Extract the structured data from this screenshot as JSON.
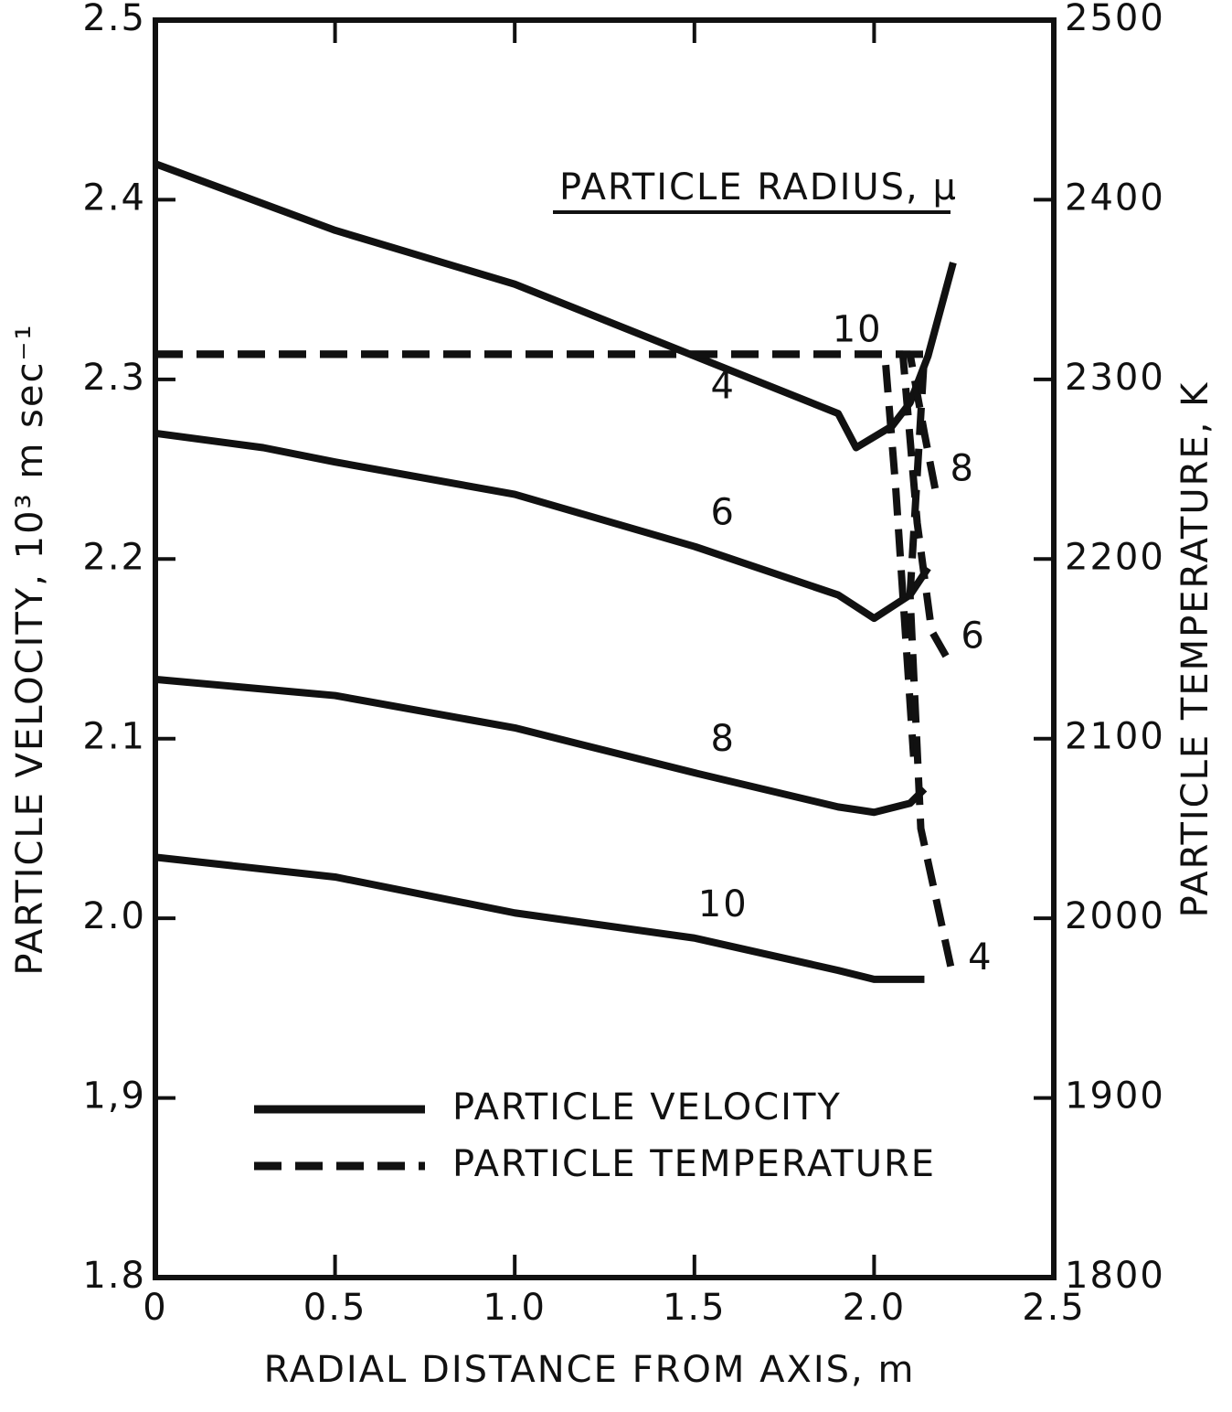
{
  "chart_data": {
    "type": "line",
    "xlabel": "RADIAL DISTANCE FROM AXIS, m",
    "ylabel": "PARTICLE VELOCITY, 10³ m sec⁻¹",
    "y2label": "PARTICLE TEMPERATURE, K",
    "legend_title": "PARTICLE RADIUS, μ",
    "legend": [
      {
        "label": "PARTICLE VELOCITY",
        "style": "solid"
      },
      {
        "label": "PARTICLE TEMPERATURE",
        "style": "dashed"
      }
    ],
    "xlim": [
      0,
      2.5
    ],
    "xticks": [
      0,
      0.5,
      {
        "value": 1,
        "label": "1.0"
      },
      1.5,
      {
        "value": 2,
        "label": "2.0"
      },
      2.5
    ],
    "ylim": [
      1.8,
      2.5
    ],
    "yticks": [
      1.8,
      {
        "value": 1.9,
        "label": "1,9"
      },
      {
        "value": 2,
        "label": "2.0"
      },
      2.1,
      2.2,
      2.3,
      2.4,
      2.5
    ],
    "y2lim": [
      1800,
      2500
    ],
    "y2ticks": [
      1800,
      1900,
      2000,
      2100,
      2200,
      2300,
      2400,
      2500
    ],
    "color": "#111111",
    "series": [
      {
        "name": "4",
        "style": "solid",
        "x": [
          0,
          0.5,
          1.0,
          1.5,
          1.9,
          1.95,
          2.05,
          2.1,
          2.15,
          2.22
        ],
        "values": [
          2.42,
          2.383,
          2.353,
          2.313,
          2.281,
          2.262,
          2.274,
          2.287,
          2.313,
          2.365
        ]
      },
      {
        "name": "6",
        "style": "solid",
        "x": [
          0,
          0.3,
          0.5,
          1.0,
          1.5,
          1.9,
          2.0,
          2.1,
          2.15
        ],
        "values": [
          2.27,
          2.262,
          2.254,
          2.236,
          2.207,
          2.18,
          2.167,
          2.18,
          2.195
        ]
      },
      {
        "name": "8",
        "style": "solid",
        "x": [
          0,
          0.5,
          1.0,
          1.5,
          1.9,
          2.0,
          2.1,
          2.14
        ],
        "values": [
          2.133,
          2.124,
          2.106,
          2.081,
          2.062,
          2.059,
          2.064,
          2.072
        ]
      },
      {
        "name": "10",
        "style": "solid",
        "x": [
          0,
          0.5,
          1.0,
          1.5,
          1.9,
          2.0,
          2.14
        ],
        "values": [
          2.034,
          2.023,
          2.003,
          1.989,
          1.971,
          1.966,
          1.966
        ]
      },
      {
        "name": "10",
        "style": "dashed",
        "axis": "y2",
        "x": [
          0,
          2.03,
          2.06,
          2.09,
          2.11
        ],
        "values": [
          2314,
          2314,
          2240,
          2150,
          2090
        ]
      },
      {
        "name": "8",
        "style": "dashed",
        "axis": "y2",
        "x": [
          0,
          2.1,
          2.14,
          2.17
        ],
        "values": [
          2314,
          2314,
          2270,
          2239
        ]
      },
      {
        "name": "6",
        "style": "dashed",
        "axis": "y2",
        "x": [
          0,
          2.08,
          2.12,
          2.16,
          2.2
        ],
        "values": [
          2314,
          2314,
          2220,
          2160,
          2146
        ]
      },
      {
        "name": "4",
        "style": "dashed",
        "axis": "y2",
        "x": [
          0,
          2.14,
          2.1,
          2.13,
          2.22
        ],
        "values": [
          2314,
          2314,
          2180,
          2050,
          1967
        ]
      }
    ]
  }
}
